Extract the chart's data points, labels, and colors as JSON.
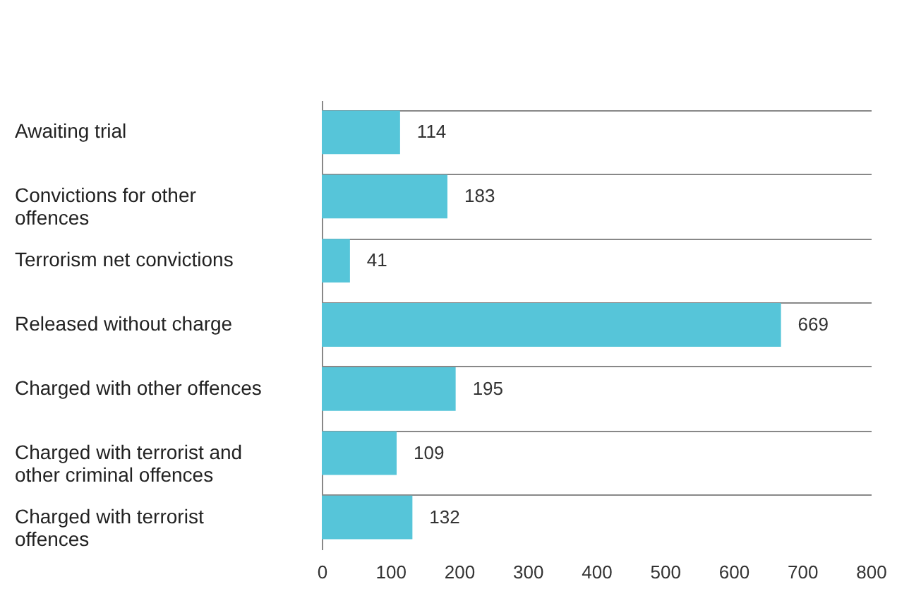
{
  "chart_data": {
    "type": "bar",
    "orientation": "horizontal",
    "categories": [
      "Awaiting trial",
      "Convictions for other offences",
      "Terrorism net convictions",
      "Released without charge",
      "Charged with other offences",
      "Charged with terrorist and other criminal offences",
      "Charged with terrorist offences"
    ],
    "values": [
      114,
      183,
      41,
      669,
      195,
      109,
      132
    ],
    "color": "#56c5d9",
    "xlim": [
      0,
      800
    ],
    "xticks": [
      0,
      100,
      200,
      300,
      400,
      500,
      600,
      700,
      800
    ],
    "data_labels": true,
    "grid": "y"
  }
}
